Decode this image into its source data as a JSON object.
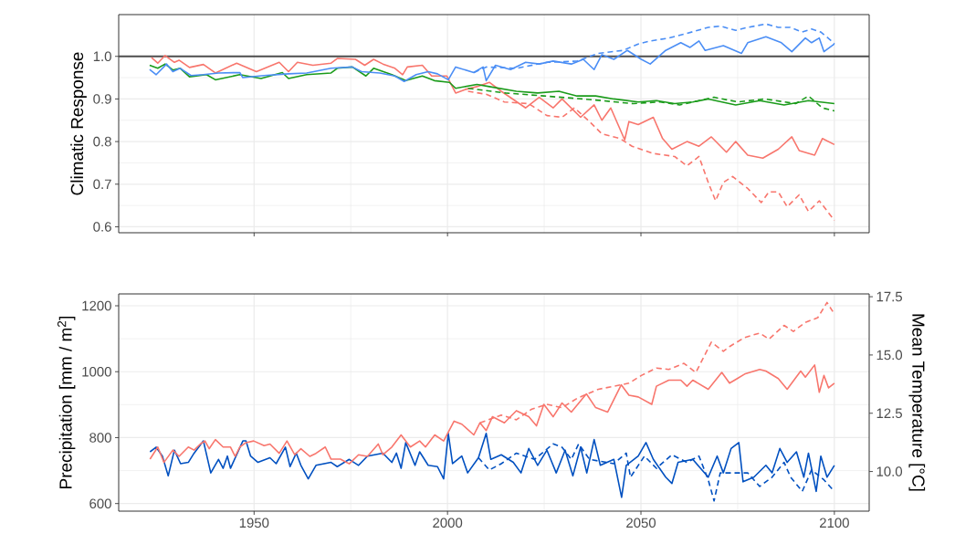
{
  "chart_data": [
    {
      "type": "line",
      "ylabel": "Climatic Response",
      "xlim": [
        1915,
        2109
      ],
      "ylim": [
        0.586,
        1.098
      ],
      "xticks": [
        1950,
        2000,
        2050,
        2100
      ],
      "yticks": [
        {
          "value": 0.6,
          "label": "0.6"
        },
        {
          "value": 0.7,
          "label": "0.7"
        },
        {
          "value": 0.8,
          "label": "0.8"
        },
        {
          "value": 0.9,
          "label": "0.9"
        },
        {
          "value": 1.0,
          "label": "1.0"
        }
      ],
      "tick_labels": "y",
      "grid": true,
      "ref_lines": [
        {
          "axis": "y",
          "value": 1.0,
          "color": "#4d4d4d"
        }
      ],
      "series": [
        {
          "color": "#f8766d",
          "line_style": "solid",
          "x": [
            1923.5,
            1925.1,
            1927.0,
            1929.4,
            1930.6,
            1933.3,
            1936.9,
            1940.0,
            1945.5,
            1950.6,
            1956.5,
            1958.9,
            1961.2,
            1965.2,
            1969.9,
            1971.5,
            1976.2,
            1978.6,
            1980.9,
            1983.3,
            1986.4,
            1988.4,
            1989.6,
            1993.5,
            1995.9,
            1999.8,
            2002.1,
            2004.5,
            2007.6,
            2010.8,
            2013.9,
            2020.2,
            2023.7,
            2027.3,
            2029.6,
            2034.4,
            2037.9,
            2039.9,
            2042.2,
            2045.8,
            2046.9,
            2049.3,
            2053.2,
            2055.6,
            2058.0,
            2061.9,
            2065.0,
            2068.2,
            2072.1,
            2074.5,
            2077.6,
            2081.5,
            2085.5,
            2089.0,
            2090.9,
            2094.9,
            2096.9,
            2100
          ],
          "values": [
            0.997,
            0.984,
            1.002,
            0.986,
            0.991,
            0.974,
            0.981,
            0.961,
            0.984,
            0.964,
            0.986,
            0.964,
            0.986,
            0.979,
            0.984,
            0.995,
            0.993,
            0.979,
            0.993,
            0.982,
            0.972,
            0.957,
            0.975,
            0.979,
            0.954,
            0.954,
            0.914,
            0.922,
            0.929,
            0.939,
            0.918,
            0.879,
            0.904,
            0.879,
            0.9,
            0.857,
            0.886,
            0.85,
            0.879,
            0.804,
            0.847,
            0.84,
            0.857,
            0.807,
            0.782,
            0.8,
            0.789,
            0.811,
            0.775,
            0.8,
            0.768,
            0.761,
            0.782,
            0.811,
            0.779,
            0.768,
            0.807,
            0.793
          ]
        },
        {
          "color": "#f8766d",
          "line_style": "dashed",
          "x": [
            2005.3,
            2010.0,
            2014.7,
            2021.0,
            2025.7,
            2029.6,
            2032.8,
            2036.7,
            2039.9,
            2044.6,
            2047.7,
            2053.2,
            2058.7,
            2061.9,
            2065.0,
            2067.4,
            2069.3,
            2071.3,
            2073.7,
            2077.6,
            2081.1,
            2083.1,
            2085.5,
            2087.8,
            2090.9,
            2093.3,
            2096.1,
            2100
          ],
          "values": [
            0.918,
            0.911,
            0.893,
            0.889,
            0.861,
            0.857,
            0.879,
            0.847,
            0.818,
            0.807,
            0.789,
            0.772,
            0.765,
            0.743,
            0.765,
            0.704,
            0.661,
            0.704,
            0.718,
            0.69,
            0.657,
            0.682,
            0.682,
            0.647,
            0.675,
            0.636,
            0.661,
            0.615
          ]
        },
        {
          "color": "#1a9b1a",
          "line_style": "solid",
          "x": [
            1923.0,
            1925.1,
            1927.0,
            1929.0,
            1930.9,
            1933.3,
            1937.7,
            1940.0,
            1946.3,
            1951.8,
            1957.3,
            1958.9,
            1963.6,
            1969.9,
            1971.5,
            1975.4,
            1978.9,
            1980.9,
            1985.6,
            1989.2,
            1993.5,
            1996.6,
            2000.5,
            2002.1,
            2007.6,
            2010.8,
            2017.8,
            2023.3,
            2028.8,
            2033.5,
            2038.3,
            2043.0,
            2049.3,
            2054.0,
            2058.7,
            2063.4,
            2067.4,
            2074.5,
            2080.7,
            2087.0,
            2093.3,
            2100
          ],
          "values": [
            0.979,
            0.972,
            0.982,
            0.968,
            0.972,
            0.952,
            0.957,
            0.945,
            0.957,
            0.948,
            0.962,
            0.948,
            0.957,
            0.961,
            0.972,
            0.975,
            0.954,
            0.972,
            0.957,
            0.943,
            0.954,
            0.943,
            0.939,
            0.925,
            0.934,
            0.929,
            0.918,
            0.914,
            0.918,
            0.907,
            0.907,
            0.9,
            0.893,
            0.896,
            0.889,
            0.893,
            0.9,
            0.886,
            0.896,
            0.886,
            0.896,
            0.889
          ]
        },
        {
          "color": "#1a9b1a",
          "line_style": "dashed",
          "x": [
            2005.3,
            2015.0,
            2025.0,
            2035.0,
            2040.0,
            2048.0,
            2055.0,
            2060.0,
            2068.9,
            2075.0,
            2082.0,
            2090.0,
            2093.3,
            2096.9,
            2100
          ],
          "values": [
            0.925,
            0.914,
            0.907,
            0.9,
            0.896,
            0.889,
            0.893,
            0.886,
            0.904,
            0.893,
            0.9,
            0.889,
            0.907,
            0.879,
            0.872
          ]
        },
        {
          "color": "#4b8ef5",
          "line_style": "solid",
          "x": [
            1923.0,
            1924.7,
            1927.4,
            1929.0,
            1930.9,
            1933.7,
            1936.9,
            1940.8,
            1946.3,
            1947.1,
            1952.6,
            1958.9,
            1963.6,
            1969.9,
            1975.4,
            1977.8,
            1982.5,
            1986.4,
            1988.8,
            1991.9,
            1995.0,
            1997.4,
            2000.2,
            2002.1,
            2006.8,
            2009.2,
            2010.0,
            2012.4,
            2016.3,
            2020.2,
            2023.7,
            2027.3,
            2032.0,
            2035.1,
            2037.9,
            2039.9,
            2043.0,
            2046.5,
            2050.1,
            2052.4,
            2056.4,
            2060.3,
            2062.7,
            2065.0,
            2066.6,
            2071.3,
            2076.0,
            2077.6,
            2082.3,
            2086.3,
            2089.0,
            2092.5,
            2094.1,
            2096.1,
            2097.3,
            2100
          ],
          "values": [
            0.969,
            0.957,
            0.982,
            0.964,
            0.972,
            0.955,
            0.957,
            0.961,
            0.962,
            0.95,
            0.955,
            0.959,
            0.961,
            0.972,
            0.975,
            0.964,
            0.961,
            0.954,
            0.941,
            0.957,
            0.964,
            0.959,
            0.945,
            0.975,
            0.962,
            0.975,
            0.943,
            0.979,
            0.969,
            0.986,
            0.982,
            0.989,
            0.982,
            0.993,
            0.969,
            1.004,
            0.993,
            1.014,
            0.993,
            0.982,
            1.014,
            1.032,
            1.021,
            1.036,
            1.014,
            1.025,
            1.007,
            1.032,
            1.046,
            1.032,
            1.011,
            1.043,
            1.032,
            1.043,
            1.011,
            1.029
          ]
        },
        {
          "color": "#4b8ef5",
          "line_style": "dashed",
          "x": [
            2006.8,
            2010.0,
            2017.8,
            2025.7,
            2033.5,
            2039.0,
            2045.4,
            2049.3,
            2052.4,
            2057.2,
            2061.9,
            2067.4,
            2070.5,
            2074.5,
            2077.6,
            2082.3,
            2085.5,
            2088.6,
            2091.7,
            2094.1,
            2096.5,
            2098.9,
            2100
          ],
          "values": [
            0.962,
            0.975,
            0.972,
            0.986,
            0.989,
            1.007,
            1.014,
            1.029,
            1.036,
            1.043,
            1.054,
            1.068,
            1.071,
            1.061,
            1.068,
            1.076,
            1.068,
            1.068,
            1.057,
            1.064,
            1.057,
            1.039,
            1.029
          ]
        }
      ]
    },
    {
      "type": "line",
      "ylabel": "Precipitation [mm / m$^{2}$]",
      "y2label": "Mean Temperature [°C]",
      "xlim": [
        1915,
        2109
      ],
      "ylim": [
        577,
        1236
      ],
      "y2lim": [
        8.3,
        17.62
      ],
      "xticks": [
        1950,
        2000,
        2050,
        2100
      ],
      "yticks": [
        600,
        800,
        1000,
        1200
      ],
      "y2ticks": [
        {
          "value": 10.0,
          "label": "10.0"
        },
        {
          "value": 12.5,
          "label": "12.5"
        },
        {
          "value": 15.0,
          "label": "15.0"
        },
        {
          "value": 17.5,
          "label": "17.5"
        }
      ],
      "grid": true,
      "series": [
        {
          "color": "#0050c0",
          "line_style": "solid",
          "x": [
            1923.1,
            1924.7,
            1926.3,
            1927.8,
            1929.4,
            1931.0,
            1933.0,
            1934.5,
            1936.9,
            1938.8,
            1940.8,
            1942.0,
            1943.1,
            1943.9,
            1947.1,
            1947.9,
            1949.1,
            1951.0,
            1954.1,
            1955.7,
            1958.1,
            1959.3,
            1960.9,
            1962.1,
            1964.0,
            1966.0,
            1969.9,
            1971.5,
            1974.6,
            1977.0,
            1979.3,
            1983.3,
            1985.6,
            1986.8,
            1988.0,
            1989.2,
            1991.6,
            1992.8,
            1995.0,
            1997.4,
            1999.0,
            2000.2,
            2001.3,
            2003.7,
            2005.2,
            2008.0,
            2010.0,
            2011.2,
            2013.9,
            2017.0,
            2019.0,
            2021.0,
            2023.3,
            2025.7,
            2028.1,
            2030.4,
            2032.4,
            2034.4,
            2036.0,
            2037.9,
            2039.5,
            2043.0,
            2045.0,
            2046.2,
            2049.3,
            2051.3,
            2053.2,
            2056.4,
            2058.0,
            2059.6,
            2063.4,
            2067.4,
            2069.7,
            2071.3,
            2073.3,
            2075.3,
            2076.4,
            2079.2,
            2082.3,
            2083.9,
            2085.9,
            2087.8,
            2090.2,
            2092.1,
            2093.3,
            2095.3,
            2096.5,
            2098.1,
            2100
          ],
          "values": [
            757,
            771,
            744,
            684,
            762,
            721,
            725,
            753,
            790,
            693,
            734,
            707,
            744,
            707,
            790,
            790,
            744,
            725,
            739,
            721,
            771,
            712,
            753,
            716,
            675,
            716,
            725,
            712,
            734,
            716,
            744,
            753,
            725,
            753,
            707,
            785,
            716,
            757,
            716,
            712,
            675,
            813,
            721,
            744,
            693,
            739,
            813,
            734,
            748,
            725,
            693,
            767,
            716,
            762,
            693,
            762,
            684,
            771,
            693,
            794,
            716,
            734,
            619,
            716,
            744,
            785,
            734,
            680,
            661,
            725,
            734,
            680,
            744,
            693,
            767,
            785,
            666,
            680,
            716,
            693,
            767,
            725,
            757,
            680,
            753,
            637,
            744,
            680,
            716
          ]
        },
        {
          "color": "#0050c0",
          "line_style": "dashed",
          "x": [
            2008.0,
            2010.8,
            2013.9,
            2017.8,
            2022.5,
            2027.3,
            2029.6,
            2032.0,
            2033.9,
            2036.7,
            2043.0,
            2046.2,
            2047.3,
            2050.9,
            2054.0,
            2058.0,
            2061.9,
            2065.0,
            2067.4,
            2068.9,
            2070.5,
            2077.6,
            2080.7,
            2083.9,
            2087.0,
            2088.7,
            2091.7,
            2094.1,
            2097.3,
            2100
          ],
          "values": [
            739,
            702,
            721,
            753,
            734,
            781,
            771,
            734,
            781,
            734,
            721,
            753,
            680,
            744,
            707,
            748,
            725,
            744,
            672,
            608,
            693,
            693,
            652,
            680,
            725,
            680,
            637,
            702,
            672,
            637
          ]
        },
        {
          "color": "#f8766d",
          "line_style": "solid",
          "axis": "y2",
          "x": [
            1923.1,
            1925.1,
            1926.7,
            1929.0,
            1930.6,
            1933.0,
            1934.5,
            1936.1,
            1937.3,
            1938.4,
            1940.0,
            1942.0,
            1943.9,
            1945.1,
            1946.3,
            1947.9,
            1949.9,
            1952.6,
            1954.1,
            1956.5,
            1958.5,
            1960.5,
            1962.1,
            1964.4,
            1966.0,
            1968.4,
            1969.9,
            1972.3,
            1974.6,
            1977.0,
            1979.3,
            1982.1,
            1983.3,
            1985.6,
            1988.0,
            1990.4,
            1992.8,
            1994.3,
            1996.7,
            1999.0,
            2001.7,
            2003.7,
            2006.8,
            2008.4,
            2010.0,
            2011.6,
            2014.7,
            2017.8,
            2021.0,
            2023.0,
            2024.9,
            2027.3,
            2029.6,
            2032.0,
            2035.9,
            2038.3,
            2041.4,
            2044.9,
            2046.9,
            2049.3,
            2052.8,
            2054.0,
            2057.2,
            2060.3,
            2061.9,
            2063.4,
            2067.4,
            2070.9,
            2072.9,
            2074.9,
            2076.8,
            2080.7,
            2082.3,
            2085.5,
            2087.8,
            2091.3,
            2092.5,
            2094.9,
            2096.1,
            2097.3,
            2098.5,
            2100
          ],
          "values": [
            10.53,
            11.05,
            10.39,
            10.92,
            10.65,
            11.05,
            10.92,
            11.18,
            11.31,
            10.98,
            11.37,
            11.05,
            11.05,
            10.65,
            11.05,
            11.24,
            11.31,
            11.11,
            11.18,
            10.78,
            11.31,
            10.72,
            10.98,
            10.65,
            10.78,
            11.05,
            10.53,
            10.53,
            10.33,
            10.72,
            10.65,
            11.18,
            10.72,
            11.05,
            11.57,
            11.05,
            11.31,
            11.05,
            11.57,
            11.31,
            12.16,
            12.03,
            11.57,
            12.09,
            11.76,
            12.35,
            12.09,
            12.61,
            12.35,
            11.96,
            12.88,
            12.35,
            12.94,
            12.55,
            13.33,
            12.74,
            12.55,
            13.72,
            13.27,
            13.2,
            12.88,
            13.66,
            13.92,
            13.92,
            13.66,
            13.92,
            13.53,
            14.25,
            13.79,
            13.99,
            14.18,
            14.38,
            14.31,
            13.99,
            13.53,
            14.31,
            14.05,
            14.57,
            13.4,
            14.12,
            13.59,
            13.79
          ]
        },
        {
          "color": "#f8766d",
          "line_style": "dashed",
          "axis": "y2",
          "x": [
            2008.4,
            2013.9,
            2017.8,
            2021.8,
            2025.7,
            2029.6,
            2033.5,
            2039.0,
            2043.0,
            2046.9,
            2050.1,
            2054.0,
            2057.2,
            2061.1,
            2064.2,
            2068.2,
            2071.3,
            2072.9,
            2076.8,
            2080.7,
            2083.1,
            2087.0,
            2089.4,
            2092.5,
            2095.7,
            2098.1,
            2099.6
          ],
          "values": [
            12.09,
            12.42,
            12.22,
            12.68,
            12.88,
            12.74,
            13.14,
            13.53,
            13.66,
            13.79,
            14.12,
            14.44,
            14.38,
            14.64,
            14.25,
            15.55,
            15.16,
            15.36,
            15.75,
            15.94,
            15.68,
            16.27,
            16.01,
            16.4,
            16.6,
            17.25,
            16.86
          ]
        }
      ]
    }
  ]
}
